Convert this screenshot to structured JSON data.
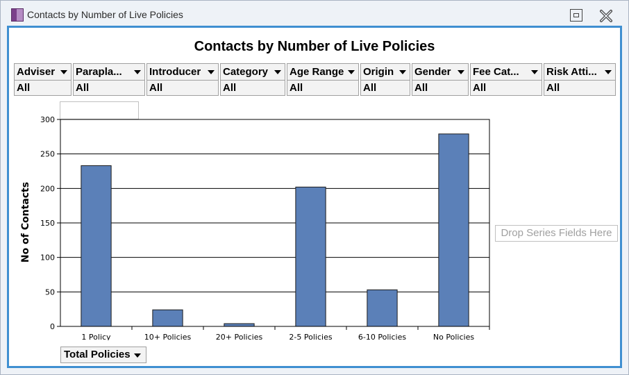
{
  "window": {
    "title": "Contacts by Number of Live Policies"
  },
  "filters": [
    {
      "label": "Adviser",
      "value": "All"
    },
    {
      "label": "Parapla...",
      "value": "All"
    },
    {
      "label": "Introducer",
      "value": "All"
    },
    {
      "label": "Category",
      "value": "All"
    },
    {
      "label": "Age Range",
      "value": "All"
    },
    {
      "label": "Origin",
      "value": "All"
    },
    {
      "label": "Gender",
      "value": "All"
    },
    {
      "label": "Fee Cat...",
      "value": "All"
    },
    {
      "label": "Risk Atti...",
      "value": "All"
    }
  ],
  "series_drop_label": "Drop Series Fields Here",
  "field_button_label": "Total Policies",
  "colors": {
    "bar": "#5b80b8",
    "accent": "#3f8fd1"
  },
  "chart_data": {
    "type": "bar",
    "title": "Contacts by Number of Live Policies",
    "xlabel": "",
    "ylabel": "No of Contacts",
    "categories": [
      "1 Policy",
      "10+ Policies",
      "20+ Policies",
      "2-5 Policies",
      "6-10 Policies",
      "No Policies"
    ],
    "values": [
      233,
      24,
      4,
      202,
      53,
      279
    ],
    "ylim": [
      0,
      300
    ],
    "yticks": [
      0,
      50,
      100,
      150,
      200,
      250,
      300
    ],
    "grid": true,
    "legend": "none"
  }
}
